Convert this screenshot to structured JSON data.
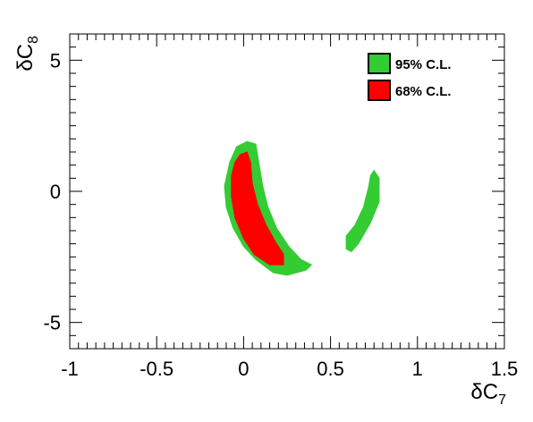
{
  "chart_data": {
    "type": "contour",
    "xlabel_main": "δC",
    "xlabel_sub": "7",
    "ylabel_main": "δC",
    "ylabel_sub": "8",
    "xlim": [
      -1,
      1.5
    ],
    "ylim": [
      -6,
      6
    ],
    "x_ticks": [
      -1,
      -0.5,
      0,
      0.5,
      1,
      1.5
    ],
    "x_tick_labels": [
      "-1",
      "-0.5",
      "0",
      "0.5",
      "1",
      "1.5"
    ],
    "y_ticks": [
      -5,
      0,
      5
    ],
    "y_tick_labels": [
      "-5",
      "0",
      "5"
    ],
    "grid": false,
    "legend_position": "top-right",
    "legend": [
      {
        "label": "95% C.L.",
        "color": "#33cc33"
      },
      {
        "label": "68% C.L.",
        "color": "#ff0000"
      }
    ],
    "regions": [
      {
        "name": "95% C.L.",
        "color": "#33cc33",
        "polygon": [
          [
            0.02,
            1.9
          ],
          [
            0.07,
            1.8
          ],
          [
            0.09,
            1.0
          ],
          [
            0.11,
            0.2
          ],
          [
            0.14,
            -0.6
          ],
          [
            0.19,
            -1.4
          ],
          [
            0.26,
            -2.1
          ],
          [
            0.33,
            -2.6
          ],
          [
            0.39,
            -2.8
          ],
          [
            0.36,
            -3.0
          ],
          [
            0.25,
            -3.2
          ],
          [
            0.17,
            -3.1
          ],
          [
            0.07,
            -2.6
          ],
          [
            0.0,
            -2.1
          ],
          [
            -0.06,
            -1.4
          ],
          [
            -0.1,
            -0.6
          ],
          [
            -0.11,
            0.2
          ],
          [
            -0.08,
            1.1
          ],
          [
            -0.04,
            1.7
          ]
        ]
      },
      {
        "name": "95% C.L.",
        "color": "#33cc33",
        "polygon": [
          [
            0.75,
            0.8
          ],
          [
            0.78,
            0.5
          ],
          [
            0.78,
            -0.4
          ],
          [
            0.73,
            -1.2
          ],
          [
            0.66,
            -2.0
          ],
          [
            0.62,
            -2.3
          ],
          [
            0.59,
            -2.2
          ],
          [
            0.59,
            -1.7
          ],
          [
            0.64,
            -1.3
          ],
          [
            0.69,
            -0.6
          ],
          [
            0.72,
            0.2
          ],
          [
            0.73,
            0.6
          ]
        ]
      },
      {
        "name": "68% C.L.",
        "color": "#ff0000",
        "polygon": [
          [
            0.02,
            1.5
          ],
          [
            0.04,
            1.1
          ],
          [
            0.05,
            0.3
          ],
          [
            0.08,
            -0.5
          ],
          [
            0.13,
            -1.3
          ],
          [
            0.19,
            -2.0
          ],
          [
            0.23,
            -2.4
          ],
          [
            0.23,
            -2.8
          ],
          [
            0.15,
            -2.8
          ],
          [
            0.06,
            -2.4
          ],
          [
            0.0,
            -1.8
          ],
          [
            -0.05,
            -1.0
          ],
          [
            -0.07,
            -0.2
          ],
          [
            -0.07,
            0.6
          ],
          [
            -0.05,
            1.1
          ],
          [
            -0.02,
            1.4
          ]
        ]
      }
    ]
  }
}
